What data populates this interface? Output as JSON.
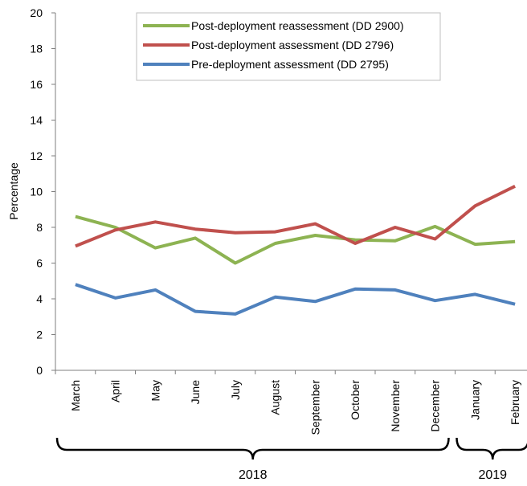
{
  "chart_data": {
    "type": "line",
    "ylabel": "Percentage",
    "xlabel": "",
    "ylim": [
      0,
      20
    ],
    "yticks": [
      0,
      2,
      4,
      6,
      8,
      10,
      12,
      14,
      16,
      18,
      20
    ],
    "categories": [
      "March",
      "April",
      "May",
      "June",
      "July",
      "August",
      "September",
      "October",
      "November",
      "December",
      "January",
      "February"
    ],
    "groups": [
      {
        "label": "2018",
        "from": "March",
        "to": "December"
      },
      {
        "label": "2019",
        "from": "January",
        "to": "February"
      }
    ],
    "grid": false,
    "legend": "top-center",
    "series": [
      {
        "name": "Post-deployment reassessment (DD 2900)",
        "color": "#8DB352",
        "values": [
          8.6,
          8.0,
          6.85,
          7.4,
          6.0,
          7.1,
          7.55,
          7.3,
          7.25,
          8.05,
          7.05,
          7.2
        ]
      },
      {
        "name": "Post-deployment assessment (DD 2796)",
        "color": "#C0504D",
        "values": [
          6.95,
          7.85,
          8.3,
          7.9,
          7.7,
          7.75,
          8.2,
          7.1,
          8.0,
          7.35,
          9.2,
          10.3
        ]
      },
      {
        "name": "Pre-deployment assessment (DD 2795)",
        "color": "#4F81BD",
        "values": [
          4.8,
          4.05,
          4.5,
          3.3,
          3.15,
          4.1,
          3.85,
          4.55,
          4.5,
          3.9,
          4.25,
          3.7
        ]
      }
    ]
  }
}
